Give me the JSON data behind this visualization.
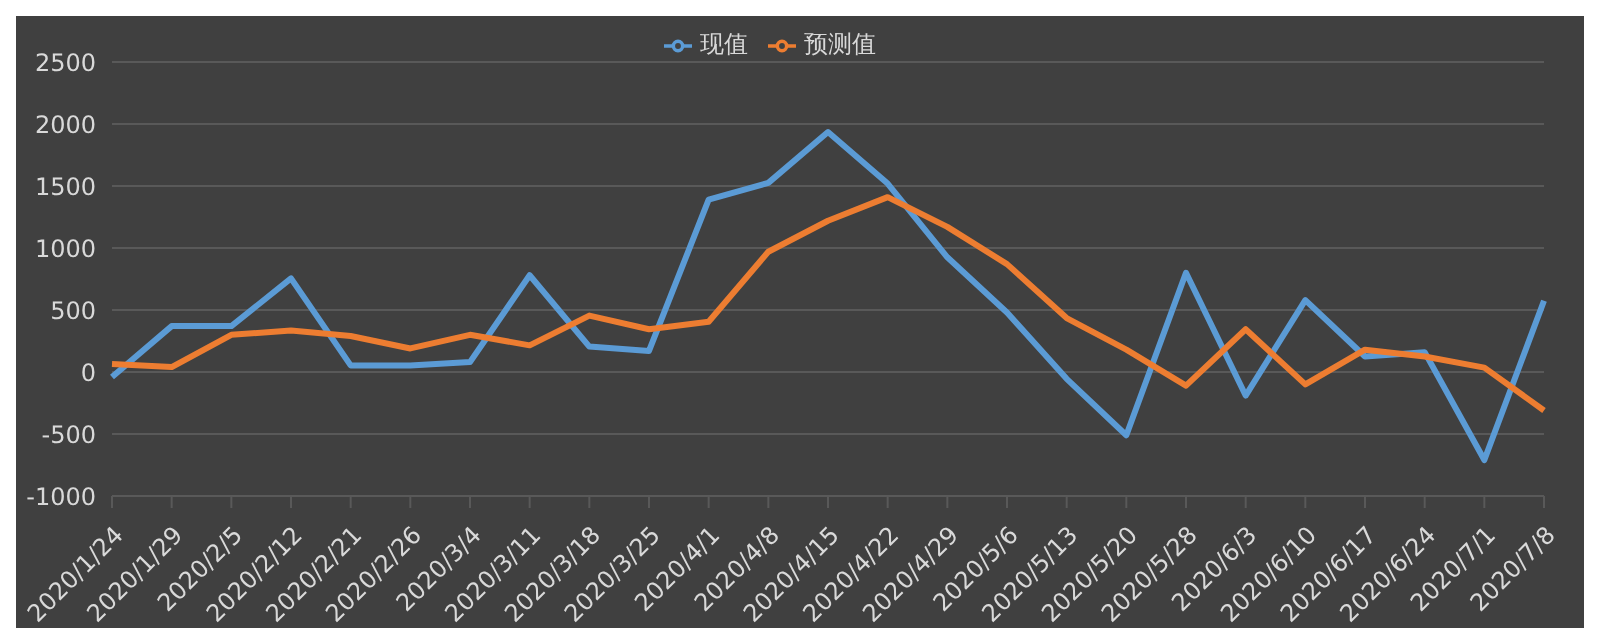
{
  "chart_data": {
    "type": "line",
    "categories": [
      "2020/1/24",
      "2020/1/29",
      "2020/2/5",
      "2020/2/12",
      "2020/2/21",
      "2020/2/26",
      "2020/3/4",
      "2020/3/11",
      "2020/3/18",
      "2020/3/25",
      "2020/4/1",
      "2020/4/8",
      "2020/4/15",
      "2020/4/22",
      "2020/4/29",
      "2020/5/6",
      "2020/5/13",
      "2020/5/20",
      "2020/5/28",
      "2020/6/3",
      "2020/6/10",
      "2020/6/17",
      "2020/6/24",
      "2020/7/1",
      "2020/7/8"
    ],
    "series": [
      {
        "name": "现值",
        "color": "#5b9bd5",
        "values": [
          -40,
          370,
          370,
          755,
          53,
          53,
          80,
          780,
          205,
          170,
          1390,
          1525,
          1935,
          1520,
          925,
          480,
          -55,
          -510,
          800,
          -190,
          580,
          125,
          160,
          -710,
          575
        ]
      },
      {
        "name": "预测值",
        "color": "#ed7d31",
        "values": [
          65,
          40,
          300,
          335,
          290,
          190,
          300,
          215,
          455,
          345,
          405,
          970,
          1220,
          1410,
          1170,
          870,
          435,
          180,
          -110,
          345,
          -100,
          180,
          125,
          35,
          -310
        ]
      }
    ],
    "ylim": [
      -1000,
      2500
    ],
    "yticks": [
      -1000,
      -500,
      0,
      500,
      1000,
      1500,
      2000,
      2500
    ],
    "grid": "y",
    "legend": "top",
    "marker": "none",
    "line_style": "solid"
  }
}
